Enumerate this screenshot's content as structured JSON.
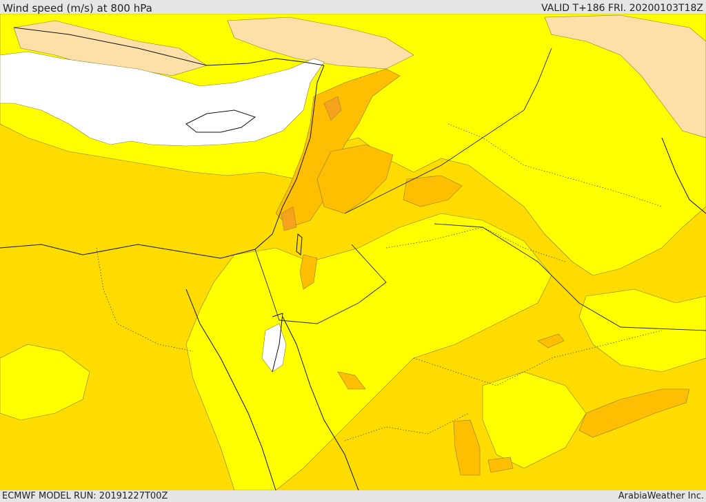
{
  "header": {
    "title": "Wind speed (m/s) at 800 hPa",
    "valid": "VALID T+186 FRI. 20200103T18Z"
  },
  "footer": {
    "model_run": "ECMWF MODEL RUN: 20191227T00Z",
    "credit": "ArabiaWeather Inc."
  },
  "palette": {
    "calm": "#ffffff",
    "light": "#fde0a8",
    "low": "#ffff00",
    "moderate": "#ffdc00",
    "high": "#ffbf00",
    "strong": "#f7a21c",
    "coastline": "#111111",
    "contour": "#8a7a30"
  }
}
